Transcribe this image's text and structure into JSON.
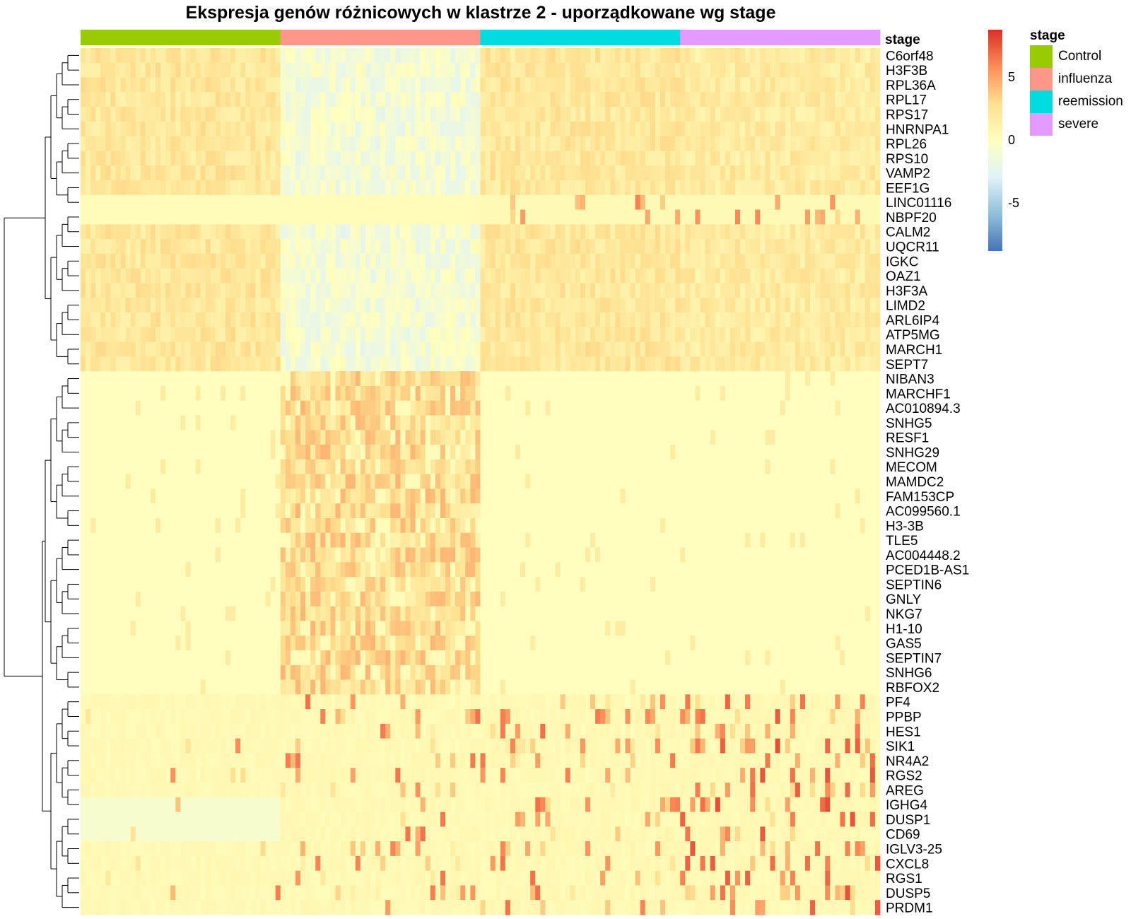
{
  "title": "Ekspresja genów różnicowych w klastrze 2 - uporządkowane wg stage",
  "annotation_label": "stage",
  "chart_data": {
    "type": "heatmap",
    "title": "Ekspresja genów różnicowych w klastrze 2 - uporządkowane wg stage",
    "rows": [
      "C6orf48",
      "H3F3B",
      "RPL36A",
      "RPL17",
      "RPS17",
      "HNRNPA1",
      "RPL26",
      "RPS10",
      "VAMP2",
      "EEF1G",
      "LINC01116",
      "NBPF20",
      "CALM2",
      "UQCR11",
      "IGKC",
      "OAZ1",
      "H3F3A",
      "LIMD2",
      "ARL6IP4",
      "ATP5MG",
      "MARCH1",
      "SEPT7",
      "NIBAN3",
      "MARCHF1",
      "AC010894.3",
      "SNHG5",
      "RESF1",
      "SNHG29",
      "MECOM",
      "MAMDC2",
      "FAM153CP",
      "AC099560.1",
      "H3-3B",
      "TLE5",
      "AC004448.2",
      "PCED1B-AS1",
      "SEPTIN6",
      "GNLY",
      "NKG7",
      "H1-10",
      "GAS5",
      "SEPTIN7",
      "SNHG6",
      "RBFOX2",
      "PF4",
      "PPBP",
      "HES1",
      "SIK1",
      "NR4A2",
      "RGS2",
      "AREG",
      "IGHG4",
      "DUSP1",
      "CD69",
      "IGLV3-25",
      "CXCL8",
      "RGS1",
      "DUSP5",
      "PRDM1"
    ],
    "column_groups": [
      {
        "stage": "Control",
        "color": "#99CC00"
      },
      {
        "stage": "influenza",
        "color": "#FF968A"
      },
      {
        "stage": "reemission",
        "color": "#00DCE0"
      },
      {
        "stage": "severe",
        "color": "#E39BFF"
      }
    ],
    "columns_per_group": 40,
    "row_blocks": [
      {
        "rows": "C6orf48-SEPT7",
        "Control": 1.5,
        "influenza": -0.5,
        "reemission": 1.5,
        "severe": 1.3
      },
      {
        "rows": "NIBAN3-RBFOX2",
        "Control": 0.0,
        "influenza": 2.0,
        "reemission": 0.0,
        "severe": 0.0
      },
      {
        "rows": "PF4-PRDM1",
        "Control": 0.1,
        "influenza": 0.6,
        "reemission": 0.6,
        "severe": 1.8
      }
    ],
    "value_range": [
      -8,
      8
    ],
    "legend": {
      "title": "stage",
      "items": [
        "Control",
        "influenza",
        "reemission",
        "severe"
      ]
    },
    "colorbar": {
      "ticks": [
        5,
        0,
        -5
      ],
      "colors": [
        "#d73027",
        "#fc8d59",
        "#fee090",
        "#ffffbf",
        "#e0f3f8",
        "#91bfdb",
        "#4575b4"
      ]
    },
    "row_dendrogram": true
  }
}
